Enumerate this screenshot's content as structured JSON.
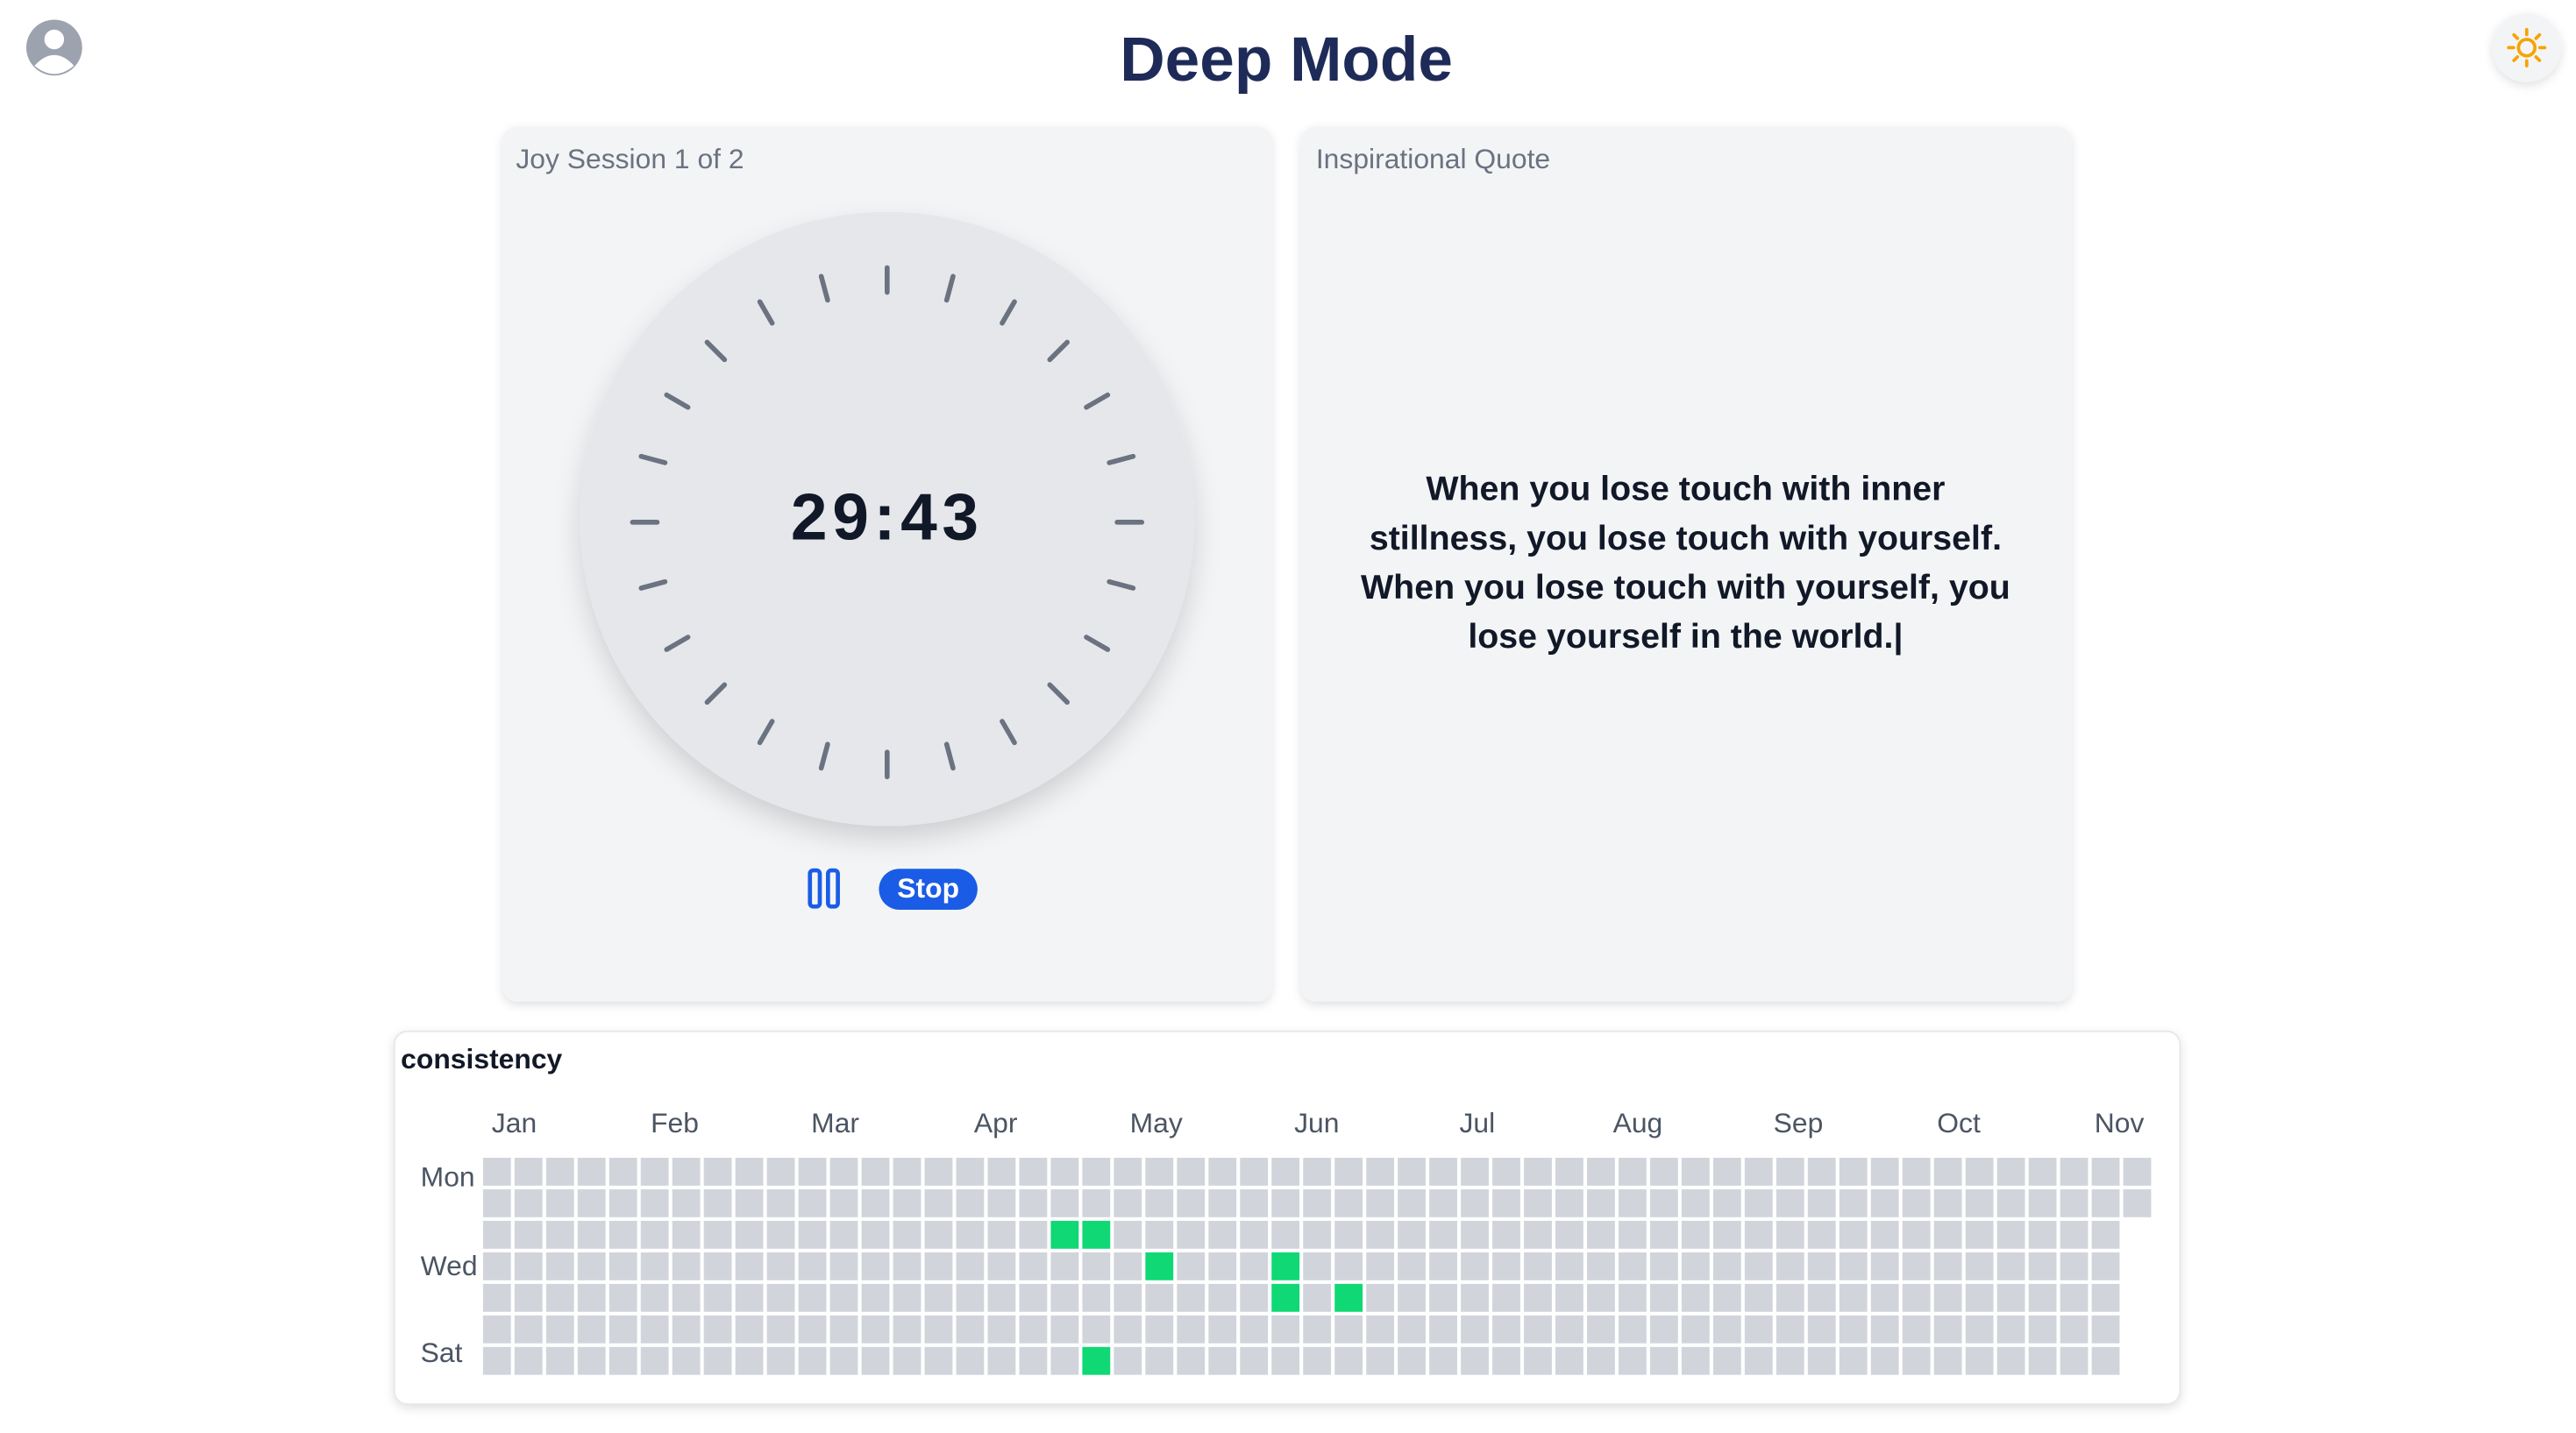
{
  "header": {
    "title": "Deep Mode"
  },
  "timer_card": {
    "label": "Joy Session 1 of 2",
    "time": "29:43",
    "stop_button": "Stop"
  },
  "quote_card": {
    "label": "Inspirational Quote",
    "lines": [
      "When you lose touch with inner",
      "stillness, you lose touch with yourself.",
      "When you lose touch with yourself, you",
      "lose yourself in the world.|"
    ]
  },
  "consistency": {
    "title": "consistency",
    "months": [
      "Jan",
      "Feb",
      "Mar",
      "Apr",
      "May",
      "Jun",
      "Jul",
      "Aug",
      "Sep",
      "Oct",
      "Nov"
    ],
    "day_labels": [
      "Mon",
      "Wed",
      "Sat"
    ],
    "weeks": 53,
    "last_week_days": 2,
    "empty_color": "#d1d5db",
    "active_color": "#0fd874",
    "active_cells": [
      {
        "week": 18,
        "day": 2
      },
      {
        "week": 19,
        "day": 2
      },
      {
        "week": 21,
        "day": 3
      },
      {
        "week": 25,
        "day": 3
      },
      {
        "week": 25,
        "day": 4
      },
      {
        "week": 27,
        "day": 4
      },
      {
        "week": 19,
        "day": 6
      }
    ]
  }
}
